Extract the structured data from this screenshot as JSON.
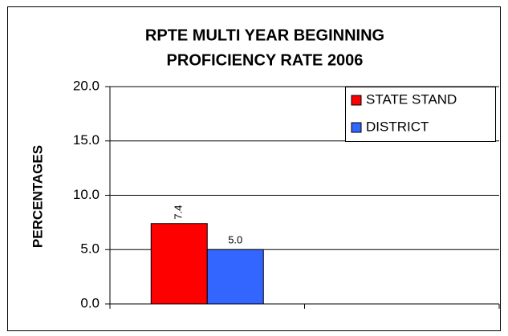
{
  "chart_data": {
    "type": "bar",
    "title": [
      "RPTE MULTI YEAR BEGINNING",
      "PROFICIENCY RATE 2006"
    ],
    "y_label": "PERCENTAGES",
    "categories": [
      null,
      null
    ],
    "series": [
      {
        "name": "STATE STAND",
        "color": "#ff0000",
        "values": [
          7.4,
          null
        ],
        "value_labels": [
          "7.4",
          null
        ]
      },
      {
        "name": "DISTRICT",
        "color": "#3366ff",
        "values": [
          5.0,
          null
        ],
        "value_labels": [
          "5.0",
          null
        ]
      }
    ],
    "ylim": [
      0,
      20
    ],
    "yticks": [
      {
        "value": 0,
        "label": "0.0"
      },
      {
        "value": 5,
        "label": "5.0"
      },
      {
        "value": 10,
        "label": "10.0"
      },
      {
        "value": 15,
        "label": "15.0"
      },
      {
        "value": 20,
        "label": "20.0"
      }
    ],
    "grid": true,
    "legend": "top-right"
  }
}
